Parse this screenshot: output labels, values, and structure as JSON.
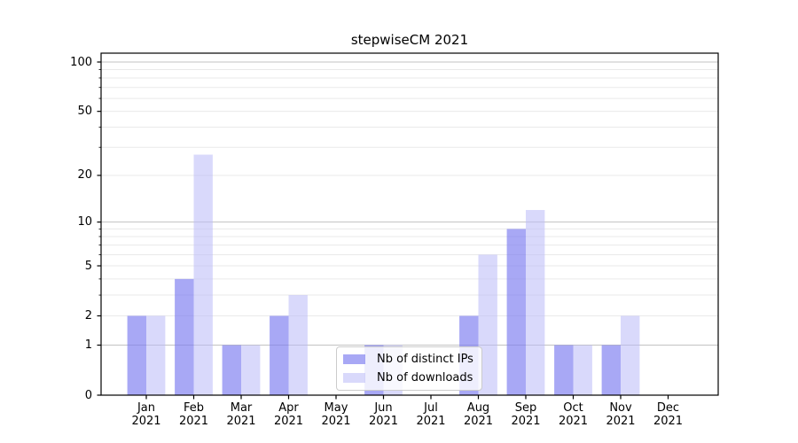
{
  "chart_data": {
    "type": "bar",
    "title": "stepwiseCM 2021",
    "categories": [
      "Jan",
      "Feb",
      "Mar",
      "Apr",
      "May",
      "Jun",
      "Jul",
      "Aug",
      "Sep",
      "Oct",
      "Nov",
      "Dec"
    ],
    "x_tick_second_line": "2021",
    "series": [
      {
        "name": "Nb of distinct IPs",
        "color": "rgba(123,123,240,0.66)",
        "solid_color": "#a8a8f5",
        "values": [
          2,
          4,
          1,
          2,
          0,
          1,
          0,
          2,
          9,
          1,
          1,
          0
        ]
      },
      {
        "name": "Nb of downloads",
        "color": "rgba(186,186,248,0.55)",
        "solid_color": "#d9d9fb",
        "values": [
          2,
          27,
          1,
          3,
          0,
          1,
          0,
          6,
          12,
          1,
          2,
          0
        ]
      }
    ],
    "yscale": "log1p",
    "ylim": [
      0,
      100
    ],
    "y_tick_labels": [
      "100",
      "50",
      "20",
      "10",
      "5",
      "2",
      "1",
      "0"
    ],
    "y_tick_values": [
      100,
      50,
      20,
      10,
      5,
      2,
      1,
      0
    ],
    "y_major_grid_values": [
      1,
      10,
      100
    ],
    "y_minor_grid_values": [
      2,
      3,
      4,
      5,
      6,
      7,
      8,
      9,
      20,
      30,
      40,
      50,
      60,
      70,
      80,
      90
    ],
    "grid": true,
    "legend_position": "lower center",
    "colors": {
      "major_grid": "#c3c3c3",
      "minor_grid": "#eaeaea",
      "spine": "#000000",
      "text": "#000000"
    }
  }
}
